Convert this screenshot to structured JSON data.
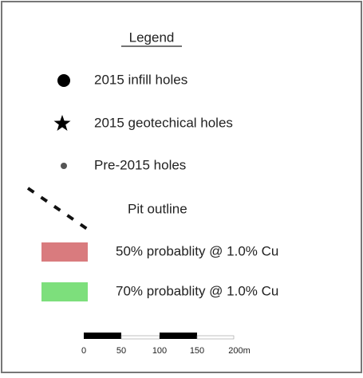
{
  "legend": {
    "title": "Legend",
    "items": [
      {
        "label": "2015 infill holes"
      },
      {
        "label": "2015 geotechical holes"
      },
      {
        "label": "Pre-2015 holes"
      },
      {
        "label": "Pit outline"
      },
      {
        "label": "50% probablity @ 1.0% Cu"
      },
      {
        "label": "70% probablity @ 1.0% Cu"
      }
    ],
    "scale_bar": {
      "labels": [
        "0",
        "50",
        "100",
        "150",
        "200m"
      ]
    }
  }
}
